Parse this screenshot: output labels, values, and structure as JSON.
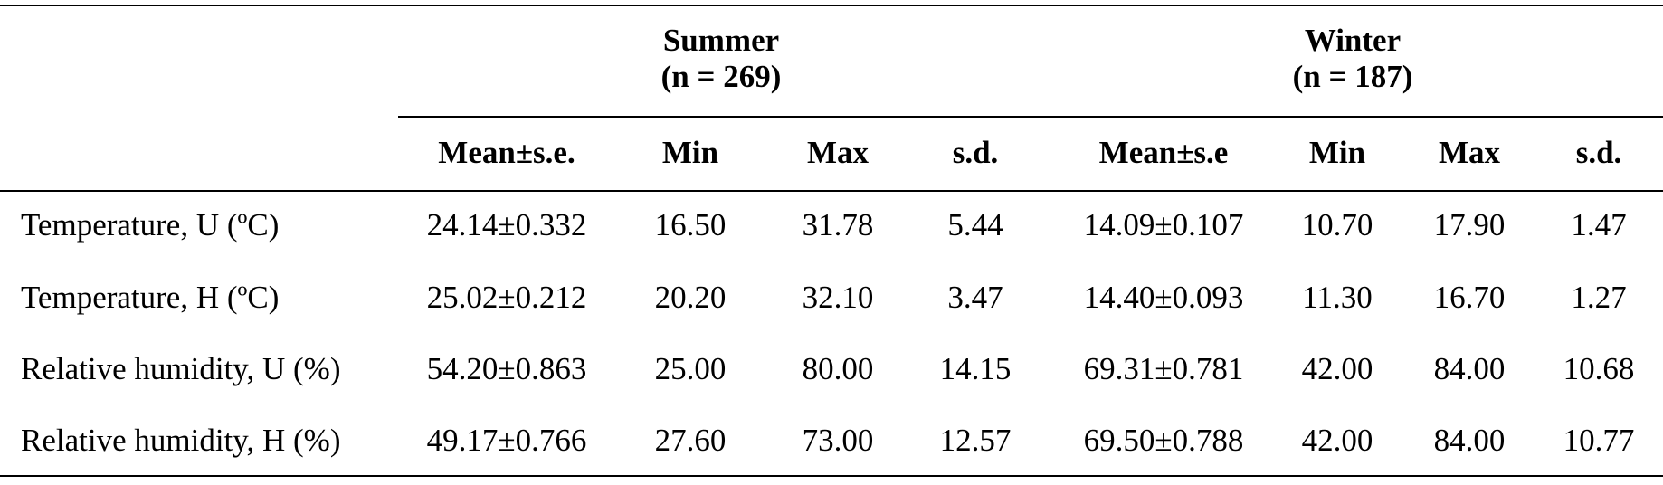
{
  "table": {
    "groups": [
      {
        "name": "Summer",
        "n": "(n = 269)"
      },
      {
        "name": "Winter",
        "n": "(n = 187)"
      }
    ],
    "columns": [
      "Mean±s.e.",
      "Min",
      "Max",
      "s.d.",
      "Mean±s.e",
      "Min",
      "Max",
      "s.d."
    ],
    "rows": [
      [
        "Temperature, U (ºC)",
        "24.14±0.332",
        "16.50",
        "31.78",
        "5.44",
        "14.09±0.107",
        "10.70",
        "17.90",
        "1.47"
      ],
      [
        "Temperature, H (ºC)",
        "25.02±0.212",
        "20.20",
        "32.10",
        "3.47",
        "14.40±0.093",
        "11.30",
        "16.70",
        "1.27"
      ],
      [
        "Relative humidity, U (%)",
        "54.20±0.863",
        "25.00",
        "80.00",
        "14.15",
        "69.31±0.781",
        "42.00",
        "84.00",
        "10.68"
      ],
      [
        "Relative humidity, H (%)",
        "49.17±0.766",
        "27.60",
        "73.00",
        "12.57",
        "69.50±0.788",
        "42.00",
        "84.00",
        "10.77"
      ]
    ]
  }
}
